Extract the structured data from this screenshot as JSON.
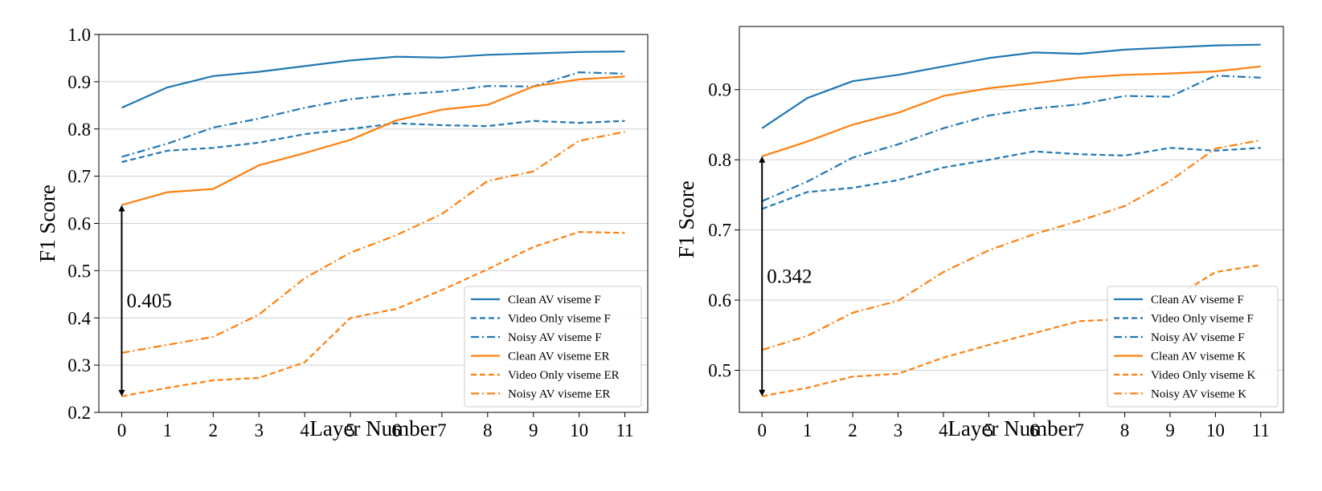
{
  "chart_data": [
    {
      "type": "line",
      "xlabel": "Layer Number",
      "ylabel": "F1 Score",
      "x": [
        0,
        1,
        2,
        3,
        4,
        5,
        6,
        7,
        8,
        9,
        10,
        11
      ],
      "xticks": [
        "0",
        "1",
        "2",
        "3",
        "4",
        "5",
        "6",
        "7",
        "8",
        "9",
        "10",
        "11"
      ],
      "xlim": [
        -0.5,
        11.5
      ],
      "ylim": [
        0.2,
        1.0
      ],
      "yticks": [
        "0.2",
        "0.3",
        "0.4",
        "0.5",
        "0.6",
        "0.7",
        "0.8",
        "0.9",
        "1.0"
      ],
      "grid": "horizontal",
      "legend_position": "lower-right",
      "annotation": {
        "text": "0.405",
        "x": 0,
        "y_from": 0.234,
        "y_to": 0.639
      },
      "series": [
        {
          "name": "Clean AV viseme F",
          "color": "#1f77b4",
          "style": "solid",
          "values": [
            0.845,
            0.888,
            0.912,
            0.921,
            0.933,
            0.945,
            0.953,
            0.951,
            0.957,
            0.96,
            0.963,
            0.964
          ]
        },
        {
          "name": "Video Only viseme F",
          "color": "#1f77b4",
          "style": "dashed",
          "values": [
            0.73,
            0.754,
            0.76,
            0.771,
            0.789,
            0.8,
            0.812,
            0.808,
            0.806,
            0.817,
            0.813,
            0.817
          ]
        },
        {
          "name": "Noisy AV viseme F",
          "color": "#1f77b4",
          "style": "dashdot",
          "values": [
            0.741,
            0.769,
            0.803,
            0.822,
            0.845,
            0.863,
            0.873,
            0.879,
            0.891,
            0.89,
            0.92,
            0.917
          ]
        },
        {
          "name": "Clean AV viseme ER",
          "color": "#ff7f0e",
          "style": "solid",
          "values": [
            0.639,
            0.666,
            0.673,
            0.723,
            0.749,
            0.777,
            0.818,
            0.841,
            0.851,
            0.89,
            0.905,
            0.911
          ]
        },
        {
          "name": "Video Only viseme ER",
          "color": "#ff7f0e",
          "style": "dashed",
          "values": [
            0.234,
            0.252,
            0.268,
            0.273,
            0.306,
            0.4,
            0.419,
            0.459,
            0.503,
            0.55,
            0.582,
            0.58
          ]
        },
        {
          "name": "Noisy AV viseme ER",
          "color": "#ff7f0e",
          "style": "dashdot",
          "values": [
            0.326,
            0.343,
            0.36,
            0.407,
            0.484,
            0.538,
            0.575,
            0.62,
            0.69,
            0.71,
            0.775,
            0.794
          ]
        }
      ]
    },
    {
      "type": "line",
      "xlabel": "Layer Number",
      "ylabel": "F1 Score",
      "x": [
        0,
        1,
        2,
        3,
        4,
        5,
        6,
        7,
        8,
        9,
        10,
        11
      ],
      "xticks": [
        "0",
        "1",
        "2",
        "3",
        "4",
        "5",
        "6",
        "7",
        "8",
        "9",
        "10",
        "11"
      ],
      "xlim": [
        -0.5,
        11.5
      ],
      "ylim": [
        0.44,
        0.99
      ],
      "yticks": [
        "0.5",
        "0.6",
        "0.7",
        "0.8",
        "0.9"
      ],
      "grid": "horizontal",
      "legend_position": "lower-right",
      "annotation": {
        "text": "0.342",
        "x": 0,
        "y_from": 0.463,
        "y_to": 0.805
      },
      "series": [
        {
          "name": "Clean AV viseme F",
          "color": "#1f77b4",
          "style": "solid",
          "values": [
            0.845,
            0.888,
            0.912,
            0.921,
            0.933,
            0.945,
            0.953,
            0.951,
            0.957,
            0.96,
            0.963,
            0.964
          ]
        },
        {
          "name": "Video Only viseme F",
          "color": "#1f77b4",
          "style": "dashed",
          "values": [
            0.73,
            0.754,
            0.76,
            0.771,
            0.789,
            0.8,
            0.812,
            0.808,
            0.806,
            0.817,
            0.813,
            0.817
          ]
        },
        {
          "name": "Noisy AV viseme F",
          "color": "#1f77b4",
          "style": "dashdot",
          "values": [
            0.741,
            0.769,
            0.803,
            0.822,
            0.845,
            0.863,
            0.873,
            0.879,
            0.891,
            0.89,
            0.92,
            0.917
          ]
        },
        {
          "name": "Clean AV viseme K",
          "color": "#ff7f0e",
          "style": "solid",
          "values": [
            0.805,
            0.826,
            0.85,
            0.867,
            0.891,
            0.902,
            0.909,
            0.917,
            0.921,
            0.923,
            0.926,
            0.933
          ]
        },
        {
          "name": "Video Only viseme K",
          "color": "#ff7f0e",
          "style": "dashed",
          "values": [
            0.463,
            0.475,
            0.491,
            0.495,
            0.518,
            0.536,
            0.553,
            0.57,
            0.573,
            0.6,
            0.64,
            0.65
          ]
        },
        {
          "name": "Noisy AV viseme K",
          "color": "#ff7f0e",
          "style": "dashdot",
          "values": [
            0.529,
            0.549,
            0.582,
            0.599,
            0.64,
            0.671,
            0.694,
            0.713,
            0.734,
            0.77,
            0.816,
            0.828
          ]
        }
      ]
    }
  ]
}
